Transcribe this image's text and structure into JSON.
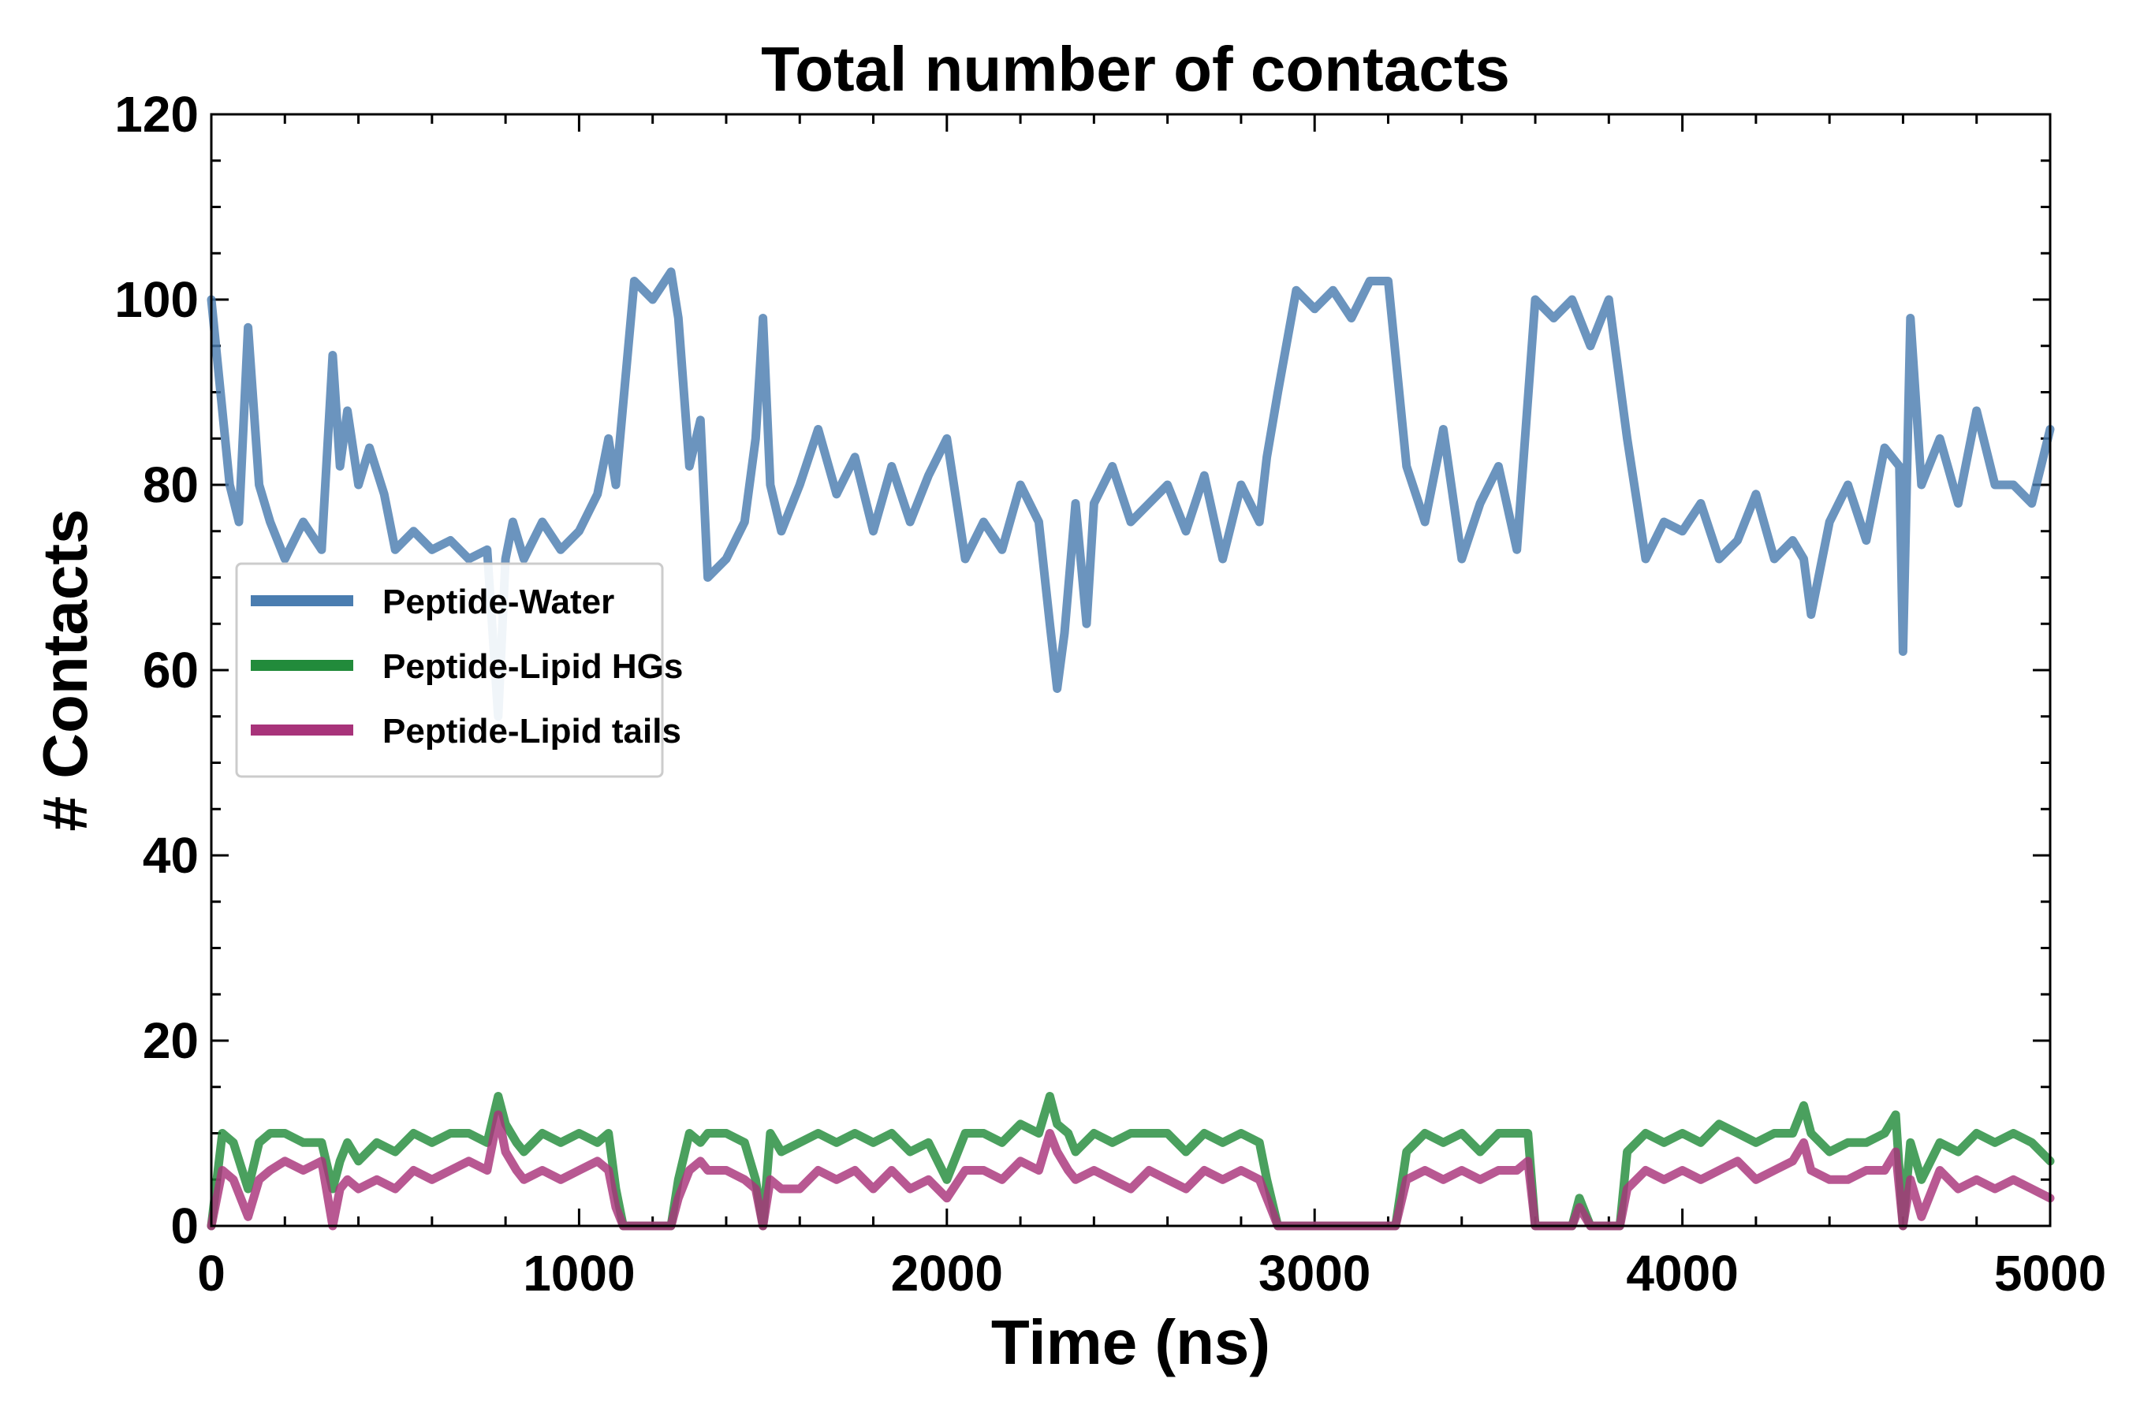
{
  "chart_data": {
    "type": "line",
    "title": "Total number of contacts",
    "xlabel": "Time (ns)",
    "ylabel": "# Contacts",
    "xlim": [
      0,
      5000
    ],
    "ylim": [
      0,
      120
    ],
    "xticks": [
      "0",
      "1000",
      "2000",
      "3000",
      "4000",
      "5000"
    ],
    "yticks": [
      "0",
      "20",
      "40",
      "60",
      "80",
      "100",
      "120"
    ],
    "legend_position": "center-left",
    "grid": false,
    "series": [
      {
        "name": "Peptide-Water",
        "color": "#4a7db0",
        "x": [
          0,
          50,
          75,
          100,
          130,
          160,
          200,
          250,
          300,
          330,
          350,
          370,
          400,
          430,
          470,
          500,
          550,
          600,
          650,
          700,
          750,
          780,
          800,
          820,
          850,
          900,
          950,
          1000,
          1050,
          1080,
          1100,
          1150,
          1200,
          1250,
          1270,
          1300,
          1330,
          1350,
          1400,
          1450,
          1480,
          1500,
          1520,
          1550,
          1600,
          1650,
          1700,
          1750,
          1800,
          1850,
          1900,
          1950,
          2000,
          2050,
          2100,
          2150,
          2200,
          2250,
          2280,
          2300,
          2320,
          2350,
          2380,
          2400,
          2450,
          2500,
          2550,
          2600,
          2650,
          2700,
          2750,
          2800,
          2850,
          2870,
          2900,
          2950,
          3000,
          3050,
          3100,
          3150,
          3200,
          3250,
          3300,
          3350,
          3400,
          3450,
          3500,
          3550,
          3600,
          3650,
          3700,
          3750,
          3800,
          3850,
          3900,
          3950,
          4000,
          4050,
          4100,
          4150,
          4200,
          4250,
          4300,
          4330,
          4350,
          4400,
          4450,
          4500,
          4550,
          4590,
          4600,
          4620,
          4650,
          4700,
          4750,
          4800,
          4850,
          4900,
          4950,
          5000
        ],
        "values": [
          100,
          80,
          76,
          97,
          80,
          76,
          72,
          76,
          73,
          94,
          82,
          88,
          80,
          84,
          79,
          73,
          75,
          73,
          74,
          72,
          73,
          55,
          72,
          76,
          72,
          76,
          73,
          75,
          79,
          85,
          80,
          102,
          100,
          103,
          98,
          82,
          87,
          70,
          72,
          76,
          85,
          98,
          80,
          75,
          80,
          86,
          79,
          83,
          75,
          82,
          76,
          81,
          85,
          72,
          76,
          73,
          80,
          76,
          65,
          58,
          64,
          78,
          65,
          78,
          82,
          76,
          78,
          80,
          75,
          81,
          72,
          80,
          76,
          83,
          90,
          101,
          99,
          101,
          98,
          102,
          102,
          82,
          76,
          86,
          72,
          78,
          82,
          73,
          100,
          98,
          100,
          95,
          100,
          85,
          72,
          76,
          75,
          78,
          72,
          74,
          79,
          72,
          74,
          72,
          66,
          76,
          80,
          74,
          84,
          82,
          62,
          98,
          80,
          85,
          78,
          88,
          80,
          80,
          78,
          86
        ]
      },
      {
        "name": "Peptide-Lipid HGs",
        "color": "#228b3b",
        "x": [
          0,
          30,
          60,
          100,
          130,
          160,
          200,
          250,
          300,
          330,
          350,
          370,
          400,
          450,
          500,
          550,
          600,
          650,
          700,
          750,
          780,
          800,
          830,
          850,
          900,
          950,
          1000,
          1050,
          1080,
          1100,
          1120,
          1150,
          1200,
          1250,
          1270,
          1300,
          1330,
          1350,
          1400,
          1450,
          1480,
          1500,
          1520,
          1550,
          1600,
          1650,
          1700,
          1750,
          1800,
          1850,
          1900,
          1950,
          2000,
          2050,
          2100,
          2150,
          2200,
          2250,
          2280,
          2300,
          2330,
          2350,
          2400,
          2450,
          2500,
          2550,
          2600,
          2650,
          2700,
          2750,
          2800,
          2850,
          2870,
          2900,
          2950,
          3000,
          3050,
          3100,
          3150,
          3200,
          3220,
          3250,
          3300,
          3350,
          3400,
          3450,
          3500,
          3550,
          3580,
          3600,
          3650,
          3700,
          3720,
          3750,
          3800,
          3830,
          3850,
          3900,
          3950,
          4000,
          4050,
          4100,
          4150,
          4200,
          4250,
          4300,
          4330,
          4350,
          4400,
          4450,
          4500,
          4550,
          4580,
          4600,
          4620,
          4650,
          4700,
          4750,
          4800,
          4850,
          4900,
          4950,
          5000
        ],
        "values": [
          0,
          10,
          9,
          4,
          9,
          10,
          10,
          9,
          9,
          4,
          7,
          9,
          7,
          9,
          8,
          10,
          9,
          10,
          10,
          9,
          14,
          11,
          9,
          8,
          10,
          9,
          10,
          9,
          10,
          4,
          0,
          0,
          0,
          0,
          5,
          10,
          9,
          10,
          10,
          9,
          5,
          0,
          10,
          8,
          9,
          10,
          9,
          10,
          9,
          10,
          8,
          9,
          5,
          10,
          10,
          9,
          11,
          10,
          14,
          11,
          10,
          8,
          10,
          9,
          10,
          10,
          10,
          8,
          10,
          9,
          10,
          9,
          5,
          0,
          0,
          0,
          0,
          0,
          0,
          0,
          0,
          8,
          10,
          9,
          10,
          8,
          10,
          10,
          10,
          0,
          0,
          0,
          3,
          0,
          0,
          0,
          8,
          10,
          9,
          10,
          9,
          11,
          10,
          9,
          10,
          10,
          13,
          10,
          8,
          9,
          9,
          10,
          12,
          0,
          9,
          5,
          9,
          8,
          10,
          9,
          10,
          9,
          7
        ]
      },
      {
        "name": "Peptide-Lipid tails",
        "color": "#a8337a",
        "x": [
          0,
          30,
          60,
          100,
          130,
          160,
          200,
          250,
          300,
          330,
          350,
          370,
          400,
          450,
          500,
          550,
          600,
          650,
          700,
          750,
          780,
          800,
          830,
          850,
          900,
          950,
          1000,
          1050,
          1080,
          1100,
          1120,
          1150,
          1200,
          1250,
          1270,
          1300,
          1330,
          1350,
          1400,
          1450,
          1480,
          1500,
          1520,
          1550,
          1600,
          1650,
          1700,
          1750,
          1800,
          1850,
          1900,
          1950,
          2000,
          2050,
          2100,
          2150,
          2200,
          2250,
          2280,
          2300,
          2330,
          2350,
          2400,
          2450,
          2500,
          2550,
          2600,
          2650,
          2700,
          2750,
          2800,
          2850,
          2870,
          2900,
          2950,
          3000,
          3050,
          3100,
          3150,
          3200,
          3220,
          3250,
          3300,
          3350,
          3400,
          3450,
          3500,
          3550,
          3580,
          3600,
          3650,
          3700,
          3720,
          3750,
          3800,
          3830,
          3850,
          3900,
          3950,
          4000,
          4050,
          4100,
          4150,
          4200,
          4250,
          4300,
          4330,
          4350,
          4400,
          4450,
          4500,
          4550,
          4580,
          4600,
          4620,
          4650,
          4700,
          4750,
          4800,
          4850,
          4900,
          4950,
          5000
        ],
        "values": [
          0,
          6,
          5,
          1,
          5,
          6,
          7,
          6,
          7,
          0,
          4,
          5,
          4,
          5,
          4,
          6,
          5,
          6,
          7,
          6,
          12,
          8,
          6,
          5,
          6,
          5,
          6,
          7,
          6,
          2,
          0,
          0,
          0,
          0,
          3,
          6,
          7,
          6,
          6,
          5,
          4,
          0,
          5,
          4,
          4,
          6,
          5,
          6,
          4,
          6,
          4,
          5,
          3,
          6,
          6,
          5,
          7,
          6,
          10,
          8,
          6,
          5,
          6,
          5,
          4,
          6,
          5,
          4,
          6,
          5,
          6,
          5,
          3,
          0,
          0,
          0,
          0,
          0,
          0,
          0,
          0,
          5,
          6,
          5,
          6,
          5,
          6,
          6,
          7,
          0,
          0,
          0,
          2,
          0,
          0,
          0,
          4,
          6,
          5,
          6,
          5,
          6,
          7,
          5,
          6,
          7,
          9,
          6,
          5,
          5,
          6,
          6,
          8,
          0,
          5,
          1,
          6,
          4,
          5,
          4,
          5,
          4,
          3
        ]
      }
    ]
  }
}
